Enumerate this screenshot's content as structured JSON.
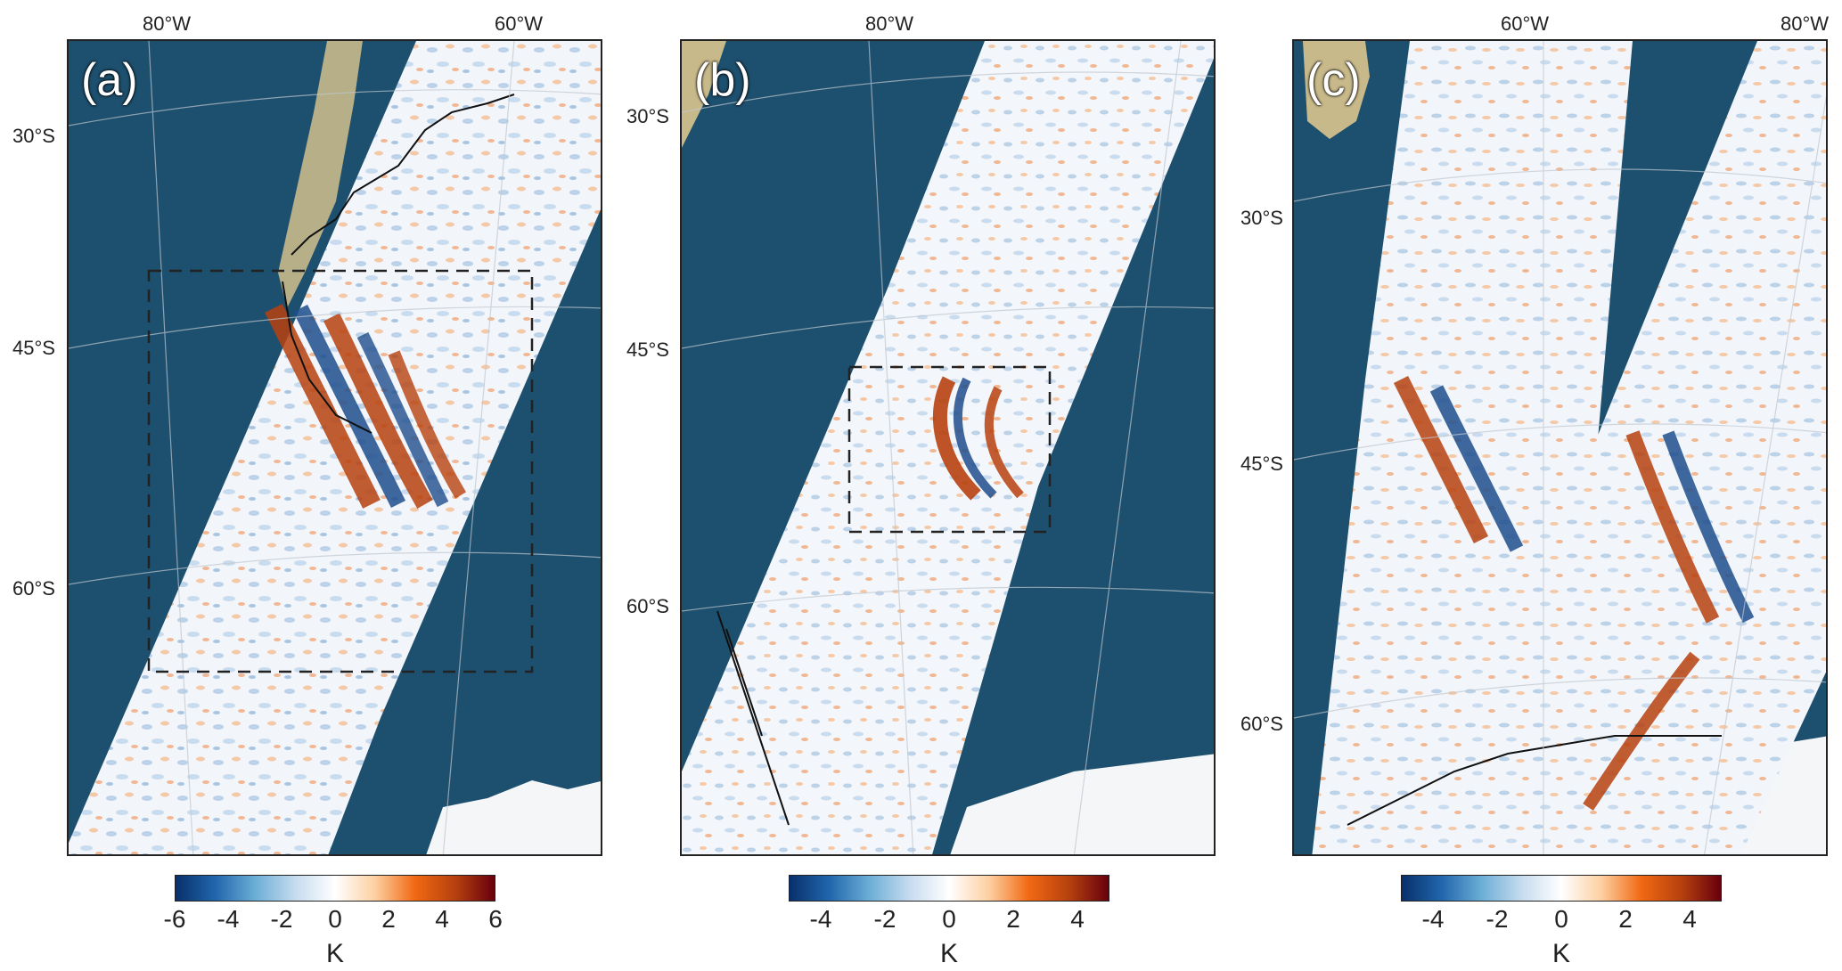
{
  "panels": [
    {
      "letter": "(a)",
      "lon_labels": [
        "80°W",
        "60°W"
      ],
      "lat_labels": [
        "30°S",
        "45°S",
        "60°S"
      ],
      "has_box": true,
      "colorbar": {
        "ticks": [
          "-6",
          "-4",
          "-2",
          "0",
          "2",
          "4",
          "6"
        ],
        "unit": "K",
        "vmin": -6,
        "vmax": 6
      }
    },
    {
      "letter": "(b)",
      "lon_labels": [
        "80°W"
      ],
      "lat_labels": [
        "30°S",
        "45°S",
        "60°S"
      ],
      "has_box": true,
      "colorbar": {
        "ticks": [
          "-4",
          "-2",
          "0",
          "2",
          "4"
        ],
        "unit": "K",
        "vmin": -5,
        "vmax": 5
      }
    },
    {
      "letter": "(c)",
      "lon_labels": [
        "60°W",
        "80°W"
      ],
      "lat_labels": [
        "30°S",
        "45°S",
        "60°S"
      ],
      "has_box": false,
      "colorbar": {
        "ticks": [
          "-4",
          "-2",
          "0",
          "2",
          "4"
        ],
        "unit": "K",
        "vmin": -5,
        "vmax": 5
      }
    }
  ],
  "colors": {
    "ocean": "#1d4f6e",
    "land": "#c8b98a",
    "ice": "#f4f6f8",
    "warm": "#b7410e",
    "cold": "#1f4e8c"
  }
}
